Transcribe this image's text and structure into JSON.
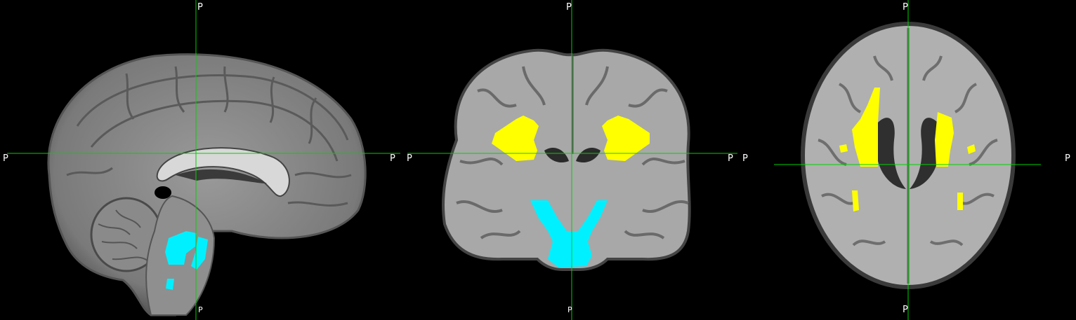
{
  "viewer": {
    "views": [
      {
        "id": "sagittal",
        "orientation_labels": {
          "top": "P",
          "bottom": "P",
          "left": "P",
          "right": "P"
        },
        "overlays": [
          {
            "name": "brainstem-region",
            "color": "#00f0ff"
          }
        ]
      },
      {
        "id": "coronal",
        "orientation_labels": {
          "top": "P",
          "bottom": "P",
          "left": "P",
          "right": "P"
        },
        "overlays": [
          {
            "name": "left-white-matter-tract",
            "color": "#ffff00"
          },
          {
            "name": "right-white-matter-tract",
            "color": "#ffff00"
          },
          {
            "name": "brainstem-region",
            "color": "#00f0ff"
          }
        ]
      },
      {
        "id": "axial",
        "orientation_labels": {
          "top": "P",
          "bottom": "P",
          "left": "P",
          "right": "P"
        },
        "overlays": [
          {
            "name": "left-white-matter-tract",
            "color": "#ffff00"
          },
          {
            "name": "right-white-matter-tract",
            "color": "#ffff00"
          }
        ]
      }
    ],
    "crosshair_color": "#00d000",
    "background_color": "#000000"
  }
}
